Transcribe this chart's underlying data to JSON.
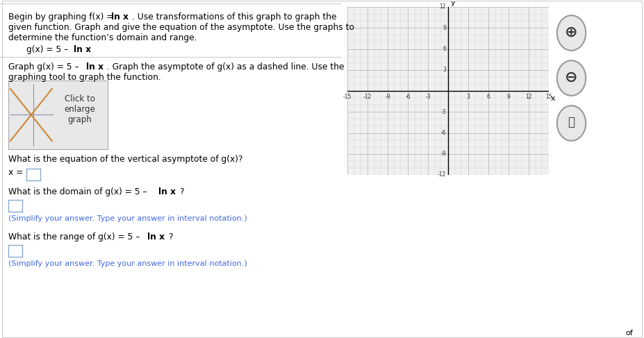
{
  "bg_color": "#ffffff",
  "text_color": "#000000",
  "blue_color": "#4169e1",
  "grid_minor_color": "#d8d8d8",
  "grid_major_color": "#bbbbbb",
  "xlim": [
    -15,
    15
  ],
  "ylim": [
    -12,
    12
  ],
  "xticks": [
    -15,
    -12,
    -9,
    -6,
    -3,
    3,
    6,
    9,
    12,
    15
  ],
  "yticks": [
    -12,
    -9,
    -6,
    -3,
    3,
    6,
    9,
    12
  ],
  "xtick_labels": [
    "-15",
    "-12",
    "-9",
    "-6",
    "-3",
    "3",
    "6",
    "9",
    "12",
    "15"
  ],
  "ytick_labels": [
    "-12",
    "-9",
    "-6",
    "-3",
    "3",
    "6",
    "9",
    "12"
  ],
  "q1_text": "What is the equation of the vertical asymptote of g(x)?",
  "q2_hint": "(Simplify your answer. Type your answer in interval notation.)",
  "q3_hint": "(Simplify your answer. Type your answer in interval notation.)"
}
